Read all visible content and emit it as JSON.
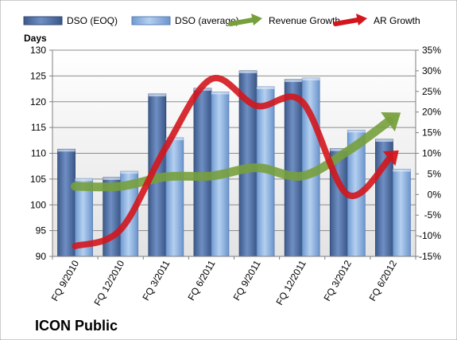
{
  "chart_data": {
    "type": "bar",
    "title": "ICON Public",
    "ylabel": "Days",
    "categories": [
      "FQ 9/2010",
      "FQ 12/2010",
      "FQ 3/2011",
      "FQ 6/2011",
      "FQ 9/2011",
      "FQ 12/2011",
      "FQ 3/2012",
      "FQ 6/2012"
    ],
    "ylim": [
      90,
      130
    ],
    "y_ticks": [
      90,
      95,
      100,
      105,
      110,
      115,
      120,
      125,
      130
    ],
    "y2lim": [
      -15,
      35
    ],
    "y2_ticks": [
      "-15%",
      "-10%",
      "-5%",
      "0%",
      "5%",
      "10%",
      "15%",
      "20%",
      "25%",
      "30%",
      "35%"
    ],
    "y2_tick_values": [
      -15,
      -10,
      -5,
      0,
      5,
      10,
      15,
      20,
      25,
      30,
      35
    ],
    "grid": true,
    "legend_position": "top",
    "series": [
      {
        "name": "DSO (EOQ)",
        "type": "bar",
        "axis": "left",
        "color": "#4f6fa3",
        "values": [
          110.8,
          105.3,
          121.5,
          122.6,
          126.0,
          124.3,
          110.9,
          112.7
        ]
      },
      {
        "name": "DSO (average)",
        "type": "bar",
        "axis": "left",
        "color": "#8fb3e0",
        "values": [
          105.1,
          106.5,
          113.0,
          121.9,
          122.9,
          124.6,
          114.5,
          106.9
        ]
      },
      {
        "name": "Revenue Growth",
        "type": "line",
        "axis": "right",
        "unit": "%",
        "color": "#77a03d",
        "values": [
          2.0,
          2.0,
          4.3,
          4.5,
          6.5,
          4.5,
          10.5,
          18.5
        ]
      },
      {
        "name": "AR Growth",
        "type": "line",
        "axis": "right",
        "unit": "%",
        "color": "#d3161d",
        "values": [
          -12.5,
          -8.5,
          11.5,
          28.0,
          21.5,
          22.5,
          0.0,
          9.5
        ]
      }
    ]
  }
}
